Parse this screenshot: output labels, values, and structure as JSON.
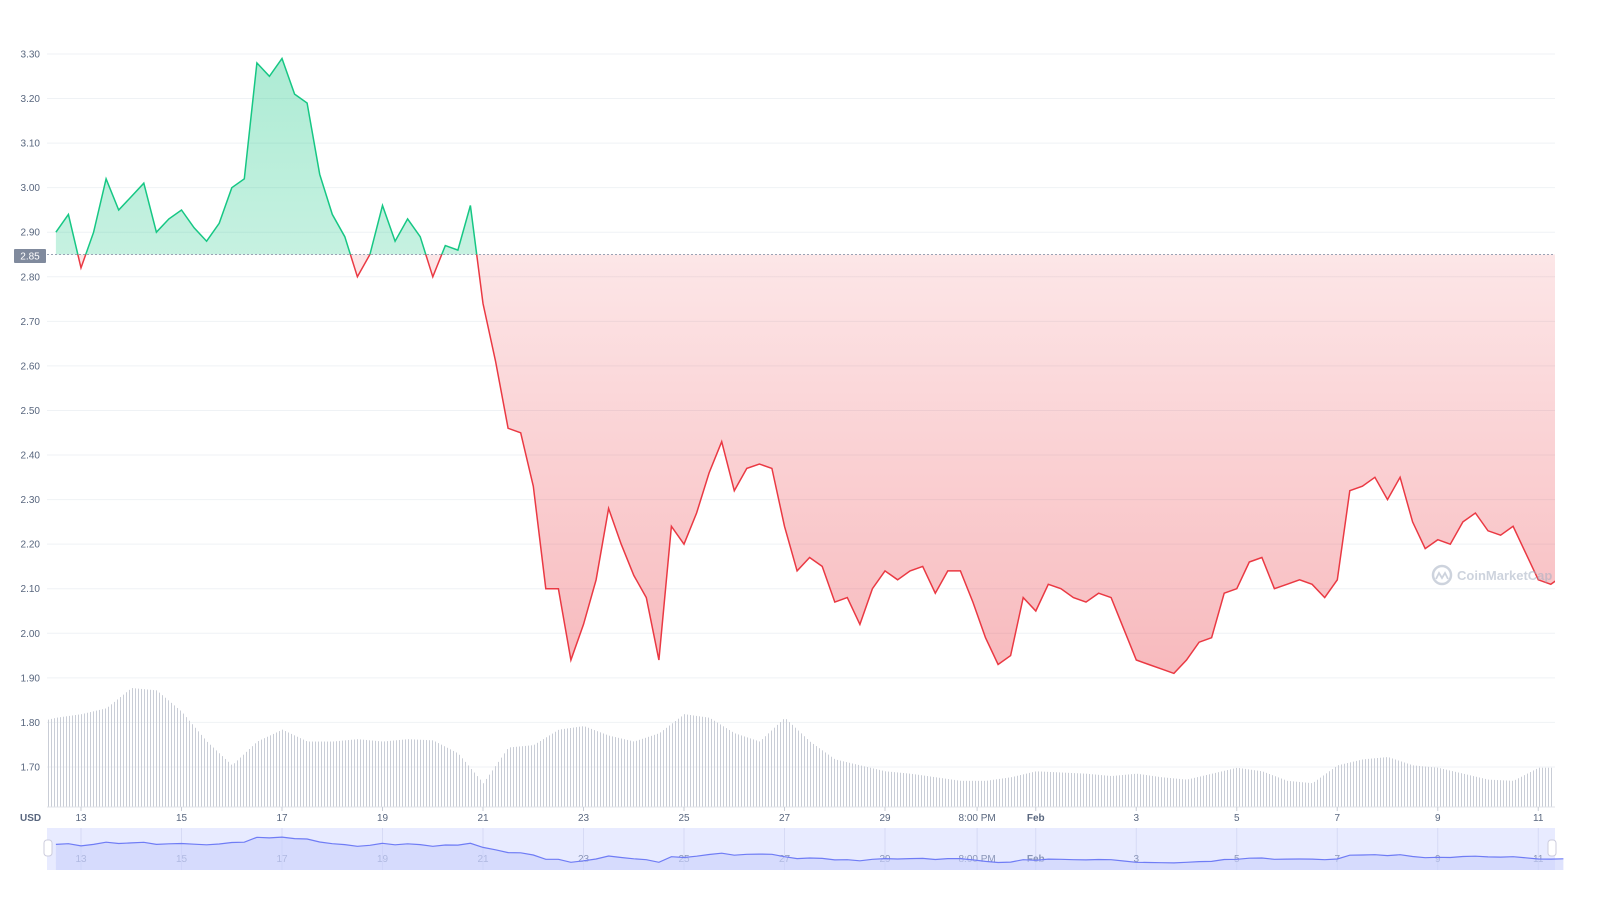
{
  "chart_data": {
    "type": "area",
    "currency_label": "USD",
    "reference_price": 2.85,
    "reference_price_label": "2.85",
    "ylim": [
      1.6,
      3.35
    ],
    "yticks": [
      "1.70",
      "1.80",
      "1.90",
      "2.00",
      "2.10",
      "2.20",
      "2.30",
      "2.40",
      "2.50",
      "2.60",
      "2.70",
      "2.80",
      "2.90",
      "3.00",
      "3.10",
      "3.20",
      "3.30"
    ],
    "xticks": [
      {
        "day": "Jan 13",
        "label": "13"
      },
      {
        "day": "Jan 15",
        "label": "15"
      },
      {
        "day": "Jan 17",
        "label": "17"
      },
      {
        "day": "Jan 19",
        "label": "19"
      },
      {
        "day": "Jan 21",
        "label": "21"
      },
      {
        "day": "Jan 23",
        "label": "23"
      },
      {
        "day": "Jan 25",
        "label": "25"
      },
      {
        "day": "Jan 27",
        "label": "27"
      },
      {
        "day": "Jan 29",
        "label": "29"
      },
      {
        "day": "Jan 30 20:00",
        "label": "8:00 PM"
      },
      {
        "day": "Feb 1",
        "label": "Feb",
        "bold": true
      },
      {
        "day": "Feb 3",
        "label": "3"
      },
      {
        "day": "Feb 5",
        "label": "5"
      },
      {
        "day": "Feb 7",
        "label": "7"
      },
      {
        "day": "Feb 9",
        "label": "9"
      },
      {
        "day": "Feb 11",
        "label": "11"
      }
    ],
    "price_hours": [
      "00:00",
      "06:00",
      "12:00",
      "18:00"
    ],
    "prices": [
      {
        "date": "Jan 12",
        "values": [
          null,
          null,
          2.9,
          2.94
        ]
      },
      {
        "date": "Jan 13",
        "values": [
          2.82,
          2.9,
          3.02,
          2.95
        ]
      },
      {
        "date": "Jan 14",
        "values": [
          2.98,
          3.01,
          2.9,
          2.93
        ]
      },
      {
        "date": "Jan 15",
        "values": [
          2.95,
          2.91,
          2.88,
          2.92
        ]
      },
      {
        "date": "Jan 16",
        "values": [
          3.0,
          3.02,
          3.28,
          3.25
        ]
      },
      {
        "date": "Jan 17",
        "values": [
          3.29,
          3.21,
          3.19,
          3.03
        ]
      },
      {
        "date": "Jan 18",
        "values": [
          2.94,
          2.89,
          2.8,
          2.85
        ]
      },
      {
        "date": "Jan 19",
        "values": [
          2.96,
          2.88,
          2.93,
          2.89
        ]
      },
      {
        "date": "Jan 20",
        "values": [
          2.8,
          2.87,
          2.86,
          2.96
        ]
      },
      {
        "date": "Jan 21",
        "values": [
          2.74,
          2.61,
          2.46,
          2.45
        ]
      },
      {
        "date": "Jan 22",
        "values": [
          2.33,
          2.1,
          2.1,
          1.94
        ]
      },
      {
        "date": "Jan 23",
        "values": [
          2.02,
          2.12,
          2.28,
          2.2
        ]
      },
      {
        "date": "Jan 24",
        "values": [
          2.13,
          2.08,
          1.94,
          2.24
        ]
      },
      {
        "date": "Jan 25",
        "values": [
          2.2,
          2.27,
          2.36,
          2.43
        ]
      },
      {
        "date": "Jan 26",
        "values": [
          2.32,
          2.37,
          2.38,
          2.37
        ]
      },
      {
        "date": "Jan 27",
        "values": [
          2.24,
          2.14,
          2.17,
          2.15
        ]
      },
      {
        "date": "Jan 28",
        "values": [
          2.07,
          2.08,
          2.02,
          2.1
        ]
      },
      {
        "date": "Jan 29",
        "values": [
          2.14,
          2.12,
          2.14,
          2.15
        ]
      },
      {
        "date": "Jan 30",
        "values": [
          2.09,
          2.14,
          2.14,
          2.07
        ]
      },
      {
        "date": "Jan 31",
        "values": [
          1.99,
          1.93,
          1.95,
          2.08
        ]
      },
      {
        "date": "Feb 1",
        "values": [
          2.05,
          2.11,
          2.1,
          2.08
        ]
      },
      {
        "date": "Feb 2",
        "values": [
          2.07,
          2.09,
          2.08,
          2.01
        ]
      },
      {
        "date": "Feb 3",
        "values": [
          1.94,
          1.93,
          1.92,
          1.91
        ]
      },
      {
        "date": "Feb 4",
        "values": [
          1.94,
          1.98,
          1.99,
          2.09
        ]
      },
      {
        "date": "Feb 5",
        "values": [
          2.1,
          2.16,
          2.17,
          2.1
        ]
      },
      {
        "date": "Feb 6",
        "values": [
          2.11,
          2.12,
          2.11,
          2.08
        ]
      },
      {
        "date": "Feb 7",
        "values": [
          2.12,
          2.32,
          2.33,
          2.35
        ]
      },
      {
        "date": "Feb 8",
        "values": [
          2.3,
          2.35,
          2.25,
          2.19
        ]
      },
      {
        "date": "Feb 9",
        "values": [
          2.21,
          2.2,
          2.25,
          2.27
        ]
      },
      {
        "date": "Feb 10",
        "values": [
          2.23,
          2.22,
          2.24,
          2.18
        ]
      },
      {
        "date": "Feb 11",
        "values": [
          2.12,
          2.11,
          2.13
        ]
      }
    ],
    "volume_relative": [
      0.7,
      0.75,
      0.78,
      0.83,
      1.0,
      0.98,
      0.8,
      0.55,
      0.35,
      0.55,
      0.65,
      0.55,
      0.55,
      0.57,
      0.55,
      0.57,
      0.56,
      0.45,
      0.2,
      0.5,
      0.52,
      0.65,
      0.68,
      0.6,
      0.55,
      0.62,
      0.78,
      0.75,
      0.62,
      0.55,
      0.75,
      0.55,
      0.4,
      0.35,
      0.3,
      0.28,
      0.25,
      0.22,
      0.22,
      0.25,
      0.3,
      0.29,
      0.28,
      0.26,
      0.28,
      0.25,
      0.23,
      0.28,
      0.33,
      0.3,
      0.22,
      0.2,
      0.35,
      0.4,
      0.42,
      0.35,
      0.33,
      0.28,
      0.23,
      0.22,
      0.33
    ],
    "grid": true,
    "colors": {
      "up": "#16c784",
      "down": "#ea3943",
      "volume": "#c9cdd6",
      "navigator_line": "#6f7cf5",
      "navigator_fill": "#e8ebff"
    }
  },
  "watermark": "CoinMarketCap"
}
